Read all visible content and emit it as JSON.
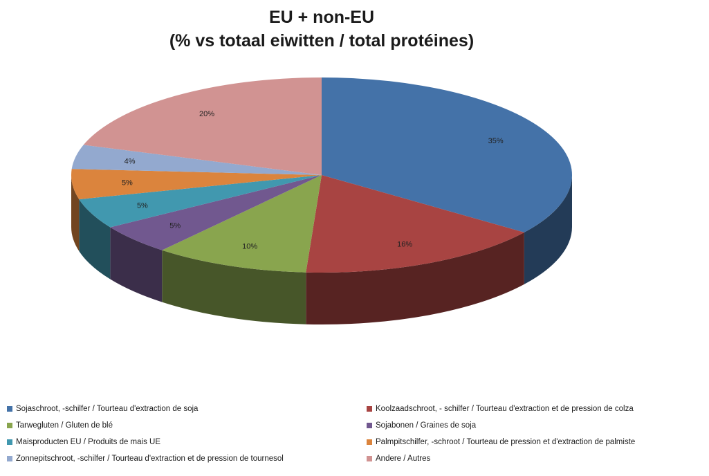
{
  "chart_data": {
    "type": "pie",
    "title": [
      "EU + non-EU",
      "(% vs totaal eiwitten / total protéines)"
    ],
    "slices": [
      {
        "label": "Sojaschroot, -schilfer / Tourteau d'extraction de soja",
        "value": 35,
        "value_label": "35%",
        "color": "#4472a8"
      },
      {
        "label": "Koolzaadschroot, - schilfer / Tourteau d'extraction et de pression de colza",
        "value": 16,
        "value_label": "16%",
        "color": "#a84442"
      },
      {
        "label": "Tarwegluten / Gluten de blé",
        "value": 10,
        "value_label": "10%",
        "color": "#89a54e"
      },
      {
        "label": "Sojabonen / Graines de soja",
        "value": 5,
        "value_label": "5%",
        "color": "#71588f"
      },
      {
        "label": "Maisproducten EU / Produits de mais UE",
        "value": 5,
        "value_label": "5%",
        "color": "#4198af"
      },
      {
        "label": "Palmpitschilfer, -schroot / Tourteau de pression et d'extraction de palmiste",
        "value": 5,
        "value_label": "5%",
        "color": "#db843d"
      },
      {
        "label": "Zonnepitschroot, -schilfer / Tourteau d'extraction et de pression de tournesol",
        "value": 4,
        "value_label": "4%",
        "color": "#93a9cf"
      },
      {
        "label": "Andere / Autres",
        "value": 20,
        "value_label": "20%",
        "color": "#d19392"
      }
    ],
    "legend_position": "bottom",
    "style": "3d-exploded-none"
  }
}
